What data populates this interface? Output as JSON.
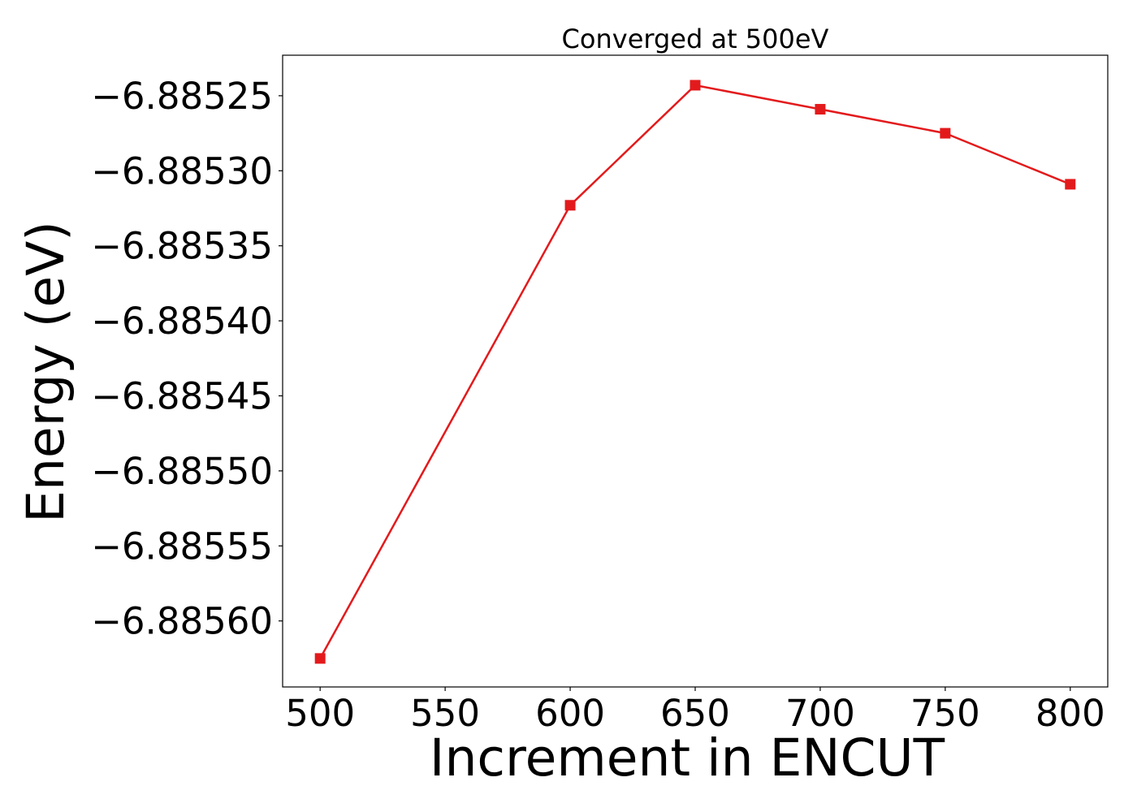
{
  "chart_data": {
    "type": "line",
    "title": "Converged at 500eV",
    "xlabel": "Increment in ENCUT",
    "ylabel": "Energy (eV)",
    "x": [
      500,
      600,
      650,
      700,
      750,
      800
    ],
    "series": [
      {
        "values": [
          -6.885625,
          -6.885323,
          -6.885243,
          -6.885259,
          -6.885275,
          -6.885309
        ],
        "color": "#e31a1c",
        "marker": "square"
      }
    ],
    "xlim": [
      485,
      815
    ],
    "ylim": [
      -6.885644,
      -6.885223
    ],
    "x_ticks": [
      500,
      550,
      600,
      650,
      700,
      750,
      800
    ],
    "x_tick_labels": [
      "500",
      "550",
      "600",
      "650",
      "700",
      "750",
      "800"
    ],
    "y_ticks": [
      -6.8856,
      -6.88555,
      -6.8855,
      -6.88545,
      -6.8854,
      -6.88535,
      -6.8853,
      -6.88525
    ],
    "y_tick_labels": [
      "−6.88560",
      "−6.88555",
      "−6.88550",
      "−6.88545",
      "−6.88540",
      "−6.88535",
      "−6.88530",
      "−6.88525"
    ],
    "grid": false,
    "legend": "none"
  }
}
